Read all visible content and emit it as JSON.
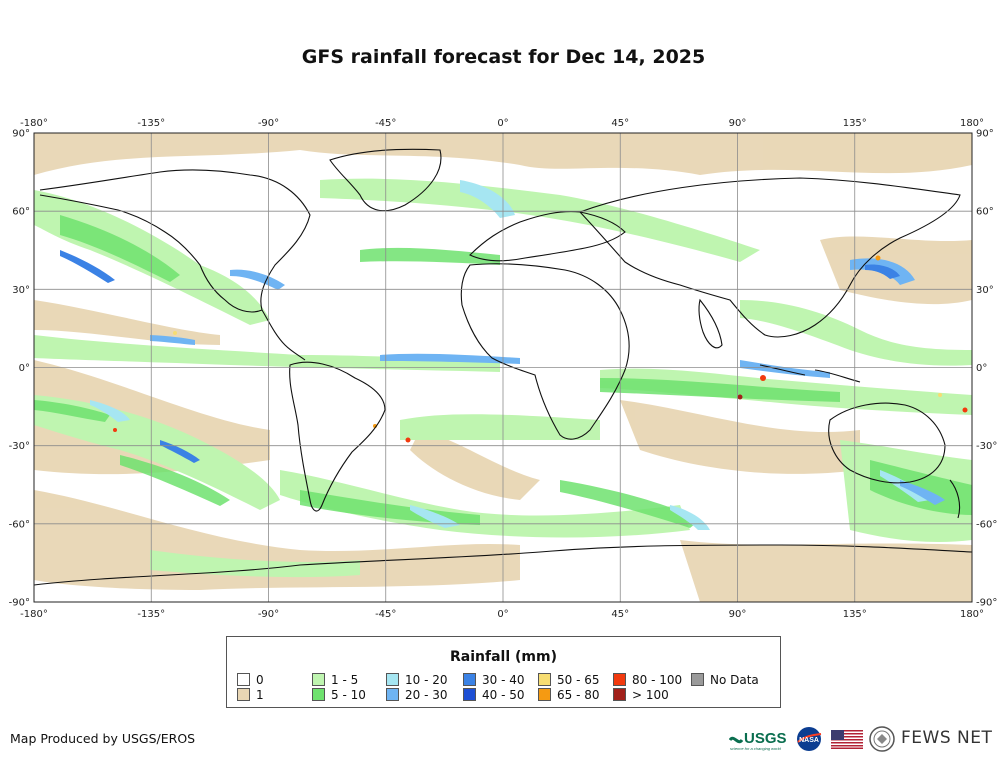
{
  "title": "GFS rainfall forecast for Dec 14, 2025",
  "map": {
    "lon_ticks": [
      "-180°",
      "-135°",
      "-90°",
      "-45°",
      "0°",
      "45°",
      "90°",
      "135°",
      "180°"
    ],
    "lat_ticks": [
      "90°",
      "60°",
      "30°",
      "0°",
      "-30°",
      "-60°",
      "-90°"
    ]
  },
  "legend": {
    "title": "Rainfall (mm)",
    "items": [
      {
        "label": "0",
        "color": "#ffffff"
      },
      {
        "label": "1",
        "color": "#e8d6b4"
      },
      {
        "label": "1 - 5",
        "color": "#bff5b0"
      },
      {
        "label": "5 - 10",
        "color": "#6fe26f"
      },
      {
        "label": "10 - 20",
        "color": "#a6e6f2"
      },
      {
        "label": "20 - 30",
        "color": "#6fb4f3"
      },
      {
        "label": "30 - 40",
        "color": "#3b82e5"
      },
      {
        "label": "40 - 50",
        "color": "#1d4fd4"
      },
      {
        "label": "50 - 65",
        "color": "#f7dd72"
      },
      {
        "label": "65 - 80",
        "color": "#f59a12"
      },
      {
        "label": "80 - 100",
        "color": "#f23a0e"
      },
      {
        "label": "> 100",
        "color": "#a1201a"
      },
      {
        "label": "No Data",
        "color": "#9a9a9a"
      }
    ]
  },
  "credit": "Map Produced by USGS/EROS",
  "logos": {
    "usgs": "USGS",
    "usgs_tagline": "science for a changing world",
    "nasa": "NASA",
    "fews": "FEWS NET"
  }
}
